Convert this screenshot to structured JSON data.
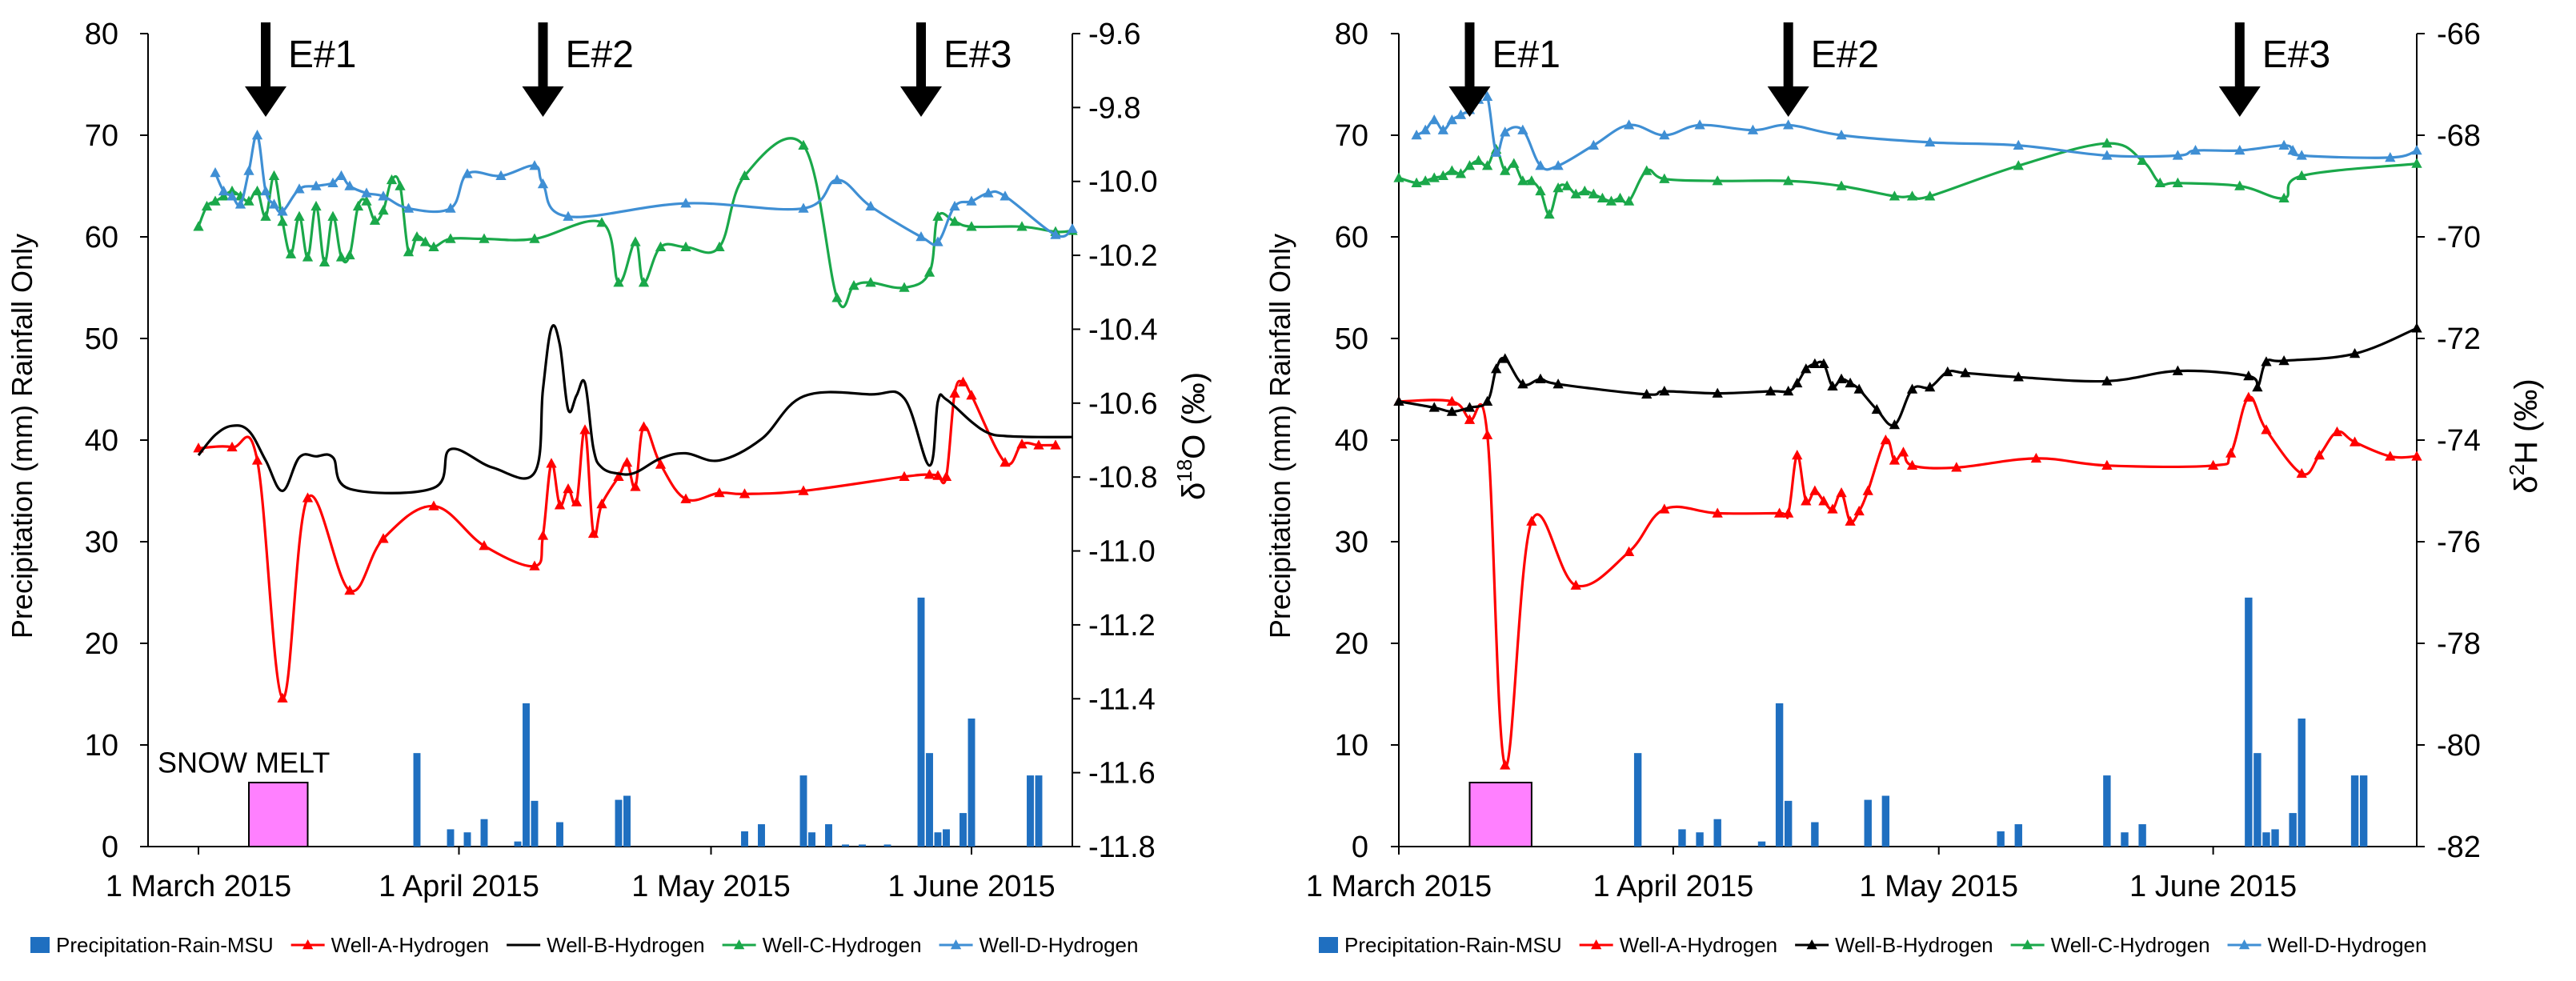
{
  "legend": [
    {
      "name": "Precipitation-Rain-MSU",
      "color": "#1f6fc0",
      "kind": "bar"
    },
    {
      "name": "Well-A-Hydrogen",
      "color": "#ff0000",
      "kind": "line"
    },
    {
      "name": "Well-B-Hydrogen",
      "color": "#000000",
      "kind": "line"
    },
    {
      "name": "Well-C-Hydrogen",
      "color": "#1aa84a",
      "kind": "line"
    },
    {
      "name": "Well-D-Hydrogen",
      "color": "#3f8fd4",
      "kind": "line"
    }
  ],
  "chart_data": [
    {
      "type": "bar+line",
      "panel": "left",
      "xlabel": "",
      "xticks": [
        {
          "day": 0,
          "label": "1 March 2015"
        },
        {
          "day": 31,
          "label": "1 April 2015"
        },
        {
          "day": 61,
          "label": "1 May 2015"
        },
        {
          "day": 92,
          "label": "1 June 2015"
        }
      ],
      "xlim": [
        -6,
        104
      ],
      "ylabel": "Precipitation (mm) Rainfall Only",
      "ylim": [
        0,
        80
      ],
      "yticks": [
        0,
        10,
        20,
        30,
        40,
        50,
        60,
        70,
        80
      ],
      "y2label_prefix": "δ",
      "y2label_sup": "18",
      "y2label_suffix": "O (‰)",
      "y2lim": [
        -11.8,
        -9.6
      ],
      "y2ticks": [
        "-9.6",
        "-9.8",
        "-10.0",
        "-10.2",
        "-10.4",
        "-10.6",
        "-10.8",
        "-11.0",
        "-11.2",
        "-11.4",
        "-11.6",
        "-11.8"
      ],
      "events": [
        {
          "label": "E#1",
          "day": 8
        },
        {
          "label": "E#2",
          "day": 41
        },
        {
          "label": "E#3",
          "day": 86
        }
      ],
      "snowmelt": {
        "label": "SNOW MELT",
        "start": 6,
        "end": 13,
        "value": 6.3
      },
      "precipitation": {
        "name": "Precipitation-Rain-MSU",
        "days": [
          26,
          30,
          32,
          34,
          38,
          39,
          40,
          43,
          50,
          51,
          65,
          67,
          72,
          73,
          75,
          77,
          79,
          82,
          86,
          87,
          88,
          89,
          91,
          92,
          99,
          100
        ],
        "values": [
          9.2,
          1.7,
          1.4,
          2.7,
          0.5,
          14.1,
          4.5,
          2.4,
          4.6,
          5.0,
          1.5,
          2.2,
          7.0,
          1.4,
          2.2,
          0.2,
          0.2,
          0.2,
          24.5,
          9.2,
          1.4,
          1.7,
          3.3,
          12.6,
          7.0,
          7.0
        ]
      },
      "series": [
        {
          "name": "Well-A-Hydrogen",
          "color": "#ff0000",
          "days": [
            0,
            4,
            7,
            10,
            13,
            18,
            22,
            28,
            34,
            40,
            41,
            42,
            43,
            44,
            45,
            46,
            47,
            48,
            50,
            51,
            52,
            53,
            55,
            58,
            62,
            65,
            72,
            84,
            87,
            88,
            89,
            90,
            91,
            92,
            96,
            98,
            100,
            102
          ],
          "values": [
            39.2,
            39.3,
            38.0,
            14.6,
            34.3,
            25.2,
            30.3,
            33.5,
            29.6,
            27.6,
            30.6,
            37.7,
            33.6,
            35.2,
            33.9,
            41.0,
            30.8,
            33.7,
            36.4,
            37.8,
            35.4,
            41.3,
            37.6,
            34.2,
            34.8,
            34.7,
            35.0,
            36.4,
            36.6,
            36.5,
            36.4,
            44.6,
            45.7,
            44.4,
            37.8,
            39.6,
            39.5,
            39.5
          ],
          "marker": "triangle"
        },
        {
          "name": "Well-B-Hydrogen",
          "color": "#000000",
          "days": [
            0,
            2,
            4,
            6,
            8,
            10,
            12,
            14,
            16,
            18,
            28,
            30,
            35,
            40,
            41,
            42,
            43,
            44,
            45,
            46,
            47,
            48,
            50,
            52,
            55,
            58,
            62,
            67,
            72,
            80,
            84,
            87,
            88,
            89,
            92,
            94,
            96,
            100,
            104
          ],
          "values": [
            38.5,
            40.5,
            41.4,
            40.9,
            38.0,
            35.0,
            38.3,
            38.4,
            38.3,
            35.2,
            35.3,
            39.1,
            37.3,
            36.8,
            45.0,
            51.0,
            49.4,
            43.0,
            44.4,
            45.6,
            39.2,
            37.3,
            36.7,
            36.8,
            38.2,
            38.7,
            38.0,
            40.1,
            44.3,
            44.5,
            44.1,
            37.5,
            43.8,
            44.0,
            41.8,
            40.7,
            40.4,
            40.3,
            40.3
          ],
          "marker": "none"
        },
        {
          "name": "Well-C-Hydrogen",
          "color": "#1aa84a",
          "days": [
            0,
            1,
            2,
            3,
            4,
            5,
            6,
            7,
            8,
            9,
            10,
            11,
            12,
            13,
            14,
            15,
            16,
            17,
            18,
            19,
            20,
            21,
            22,
            23,
            24,
            25,
            26,
            27,
            28,
            30,
            34,
            40,
            48,
            50,
            52,
            53,
            55,
            58,
            62,
            65,
            72,
            76,
            78,
            80,
            84,
            87,
            88,
            90,
            92,
            98,
            102,
            104
          ],
          "values": [
            61.0,
            63.0,
            63.5,
            64.0,
            64.5,
            64.0,
            63.5,
            64.5,
            62.0,
            66.0,
            61.5,
            58.3,
            62.0,
            58.0,
            63.0,
            57.5,
            62.0,
            58.0,
            58.2,
            63.0,
            63.5,
            61.6,
            62.6,
            65.6,
            65.0,
            58.5,
            60.0,
            59.5,
            59.0,
            59.8,
            59.8,
            59.8,
            61.4,
            55.5,
            59.5,
            55.5,
            59.0,
            59.0,
            59.0,
            66.0,
            69.0,
            54.0,
            55.2,
            55.5,
            55.0,
            56.5,
            62.0,
            61.5,
            61.0,
            61.0,
            60.5,
            60.6
          ],
          "marker": "triangle"
        },
        {
          "name": "Well-D-Hydrogen",
          "color": "#3f8fd4",
          "days": [
            2,
            3,
            4,
            5,
            6,
            7,
            8,
            9,
            10,
            12,
            14,
            16,
            17,
            18,
            20,
            22,
            25,
            30,
            32,
            36,
            40,
            41,
            44,
            58,
            72,
            76,
            80,
            86,
            88,
            90,
            92,
            94,
            96,
            102,
            104
          ],
          "values": [
            66.3,
            64.5,
            64.0,
            63.2,
            66.5,
            70.0,
            64.5,
            63.2,
            62.5,
            64.7,
            65.0,
            65.3,
            66.0,
            65.0,
            64.3,
            64.0,
            62.8,
            62.8,
            66.2,
            66.0,
            67.0,
            65.2,
            62.0,
            63.3,
            62.8,
            65.6,
            63.0,
            60.0,
            59.5,
            63.0,
            63.5,
            64.3,
            64.0,
            60.2,
            60.8
          ],
          "marker": "triangle"
        }
      ]
    },
    {
      "type": "bar+line",
      "panel": "right",
      "xlabel": "",
      "xticks": [
        {
          "day": 0,
          "label": "1 March 2015"
        },
        {
          "day": 31,
          "label": "1 April 2015"
        },
        {
          "day": 61,
          "label": "1 May 2015"
        },
        {
          "day": 92,
          "label": "1 June 2015"
        }
      ],
      "xlim": [
        0,
        115
      ],
      "ylabel": "Precipitation (mm) Rainfall Only",
      "ylim": [
        0,
        80
      ],
      "yticks": [
        0,
        10,
        20,
        30,
        40,
        50,
        60,
        70,
        80
      ],
      "y2label_prefix": "δ",
      "y2label_sup": "2",
      "y2label_suffix": "H (‰)",
      "y2lim": [
        -82,
        -66
      ],
      "y2ticks": [
        "-66",
        "-68",
        "-70",
        "-72",
        "-74",
        "-76",
        "-78",
        "-80",
        "-82"
      ],
      "events": [
        {
          "label": "E#1",
          "day": 8
        },
        {
          "label": "E#2",
          "day": 44
        },
        {
          "label": "E#3",
          "day": 95
        }
      ],
      "snowmelt": {
        "label": "",
        "start": 8,
        "end": 15,
        "value": 6.3
      },
      "precipitation": {
        "name": "Precipitation-Rain-MSU",
        "days": [
          27,
          32,
          34,
          36,
          41,
          43,
          44,
          47,
          53,
          55,
          68,
          70,
          80,
          82,
          84,
          96,
          97,
          98,
          99,
          101,
          102,
          108,
          109
        ],
        "values": [
          9.2,
          1.7,
          1.4,
          2.7,
          0.5,
          14.1,
          4.5,
          2.4,
          4.6,
          5.0,
          1.5,
          2.2,
          7.0,
          1.4,
          2.2,
          24.5,
          9.2,
          1.4,
          1.7,
          3.3,
          12.6,
          7.0,
          7.0
        ]
      },
      "series": [
        {
          "name": "Well-A-Hydrogen",
          "color": "#ff0000",
          "days": [
            0,
            6,
            8,
            10,
            12,
            15,
            20,
            26,
            30,
            36,
            43,
            44,
            45,
            46,
            47,
            48,
            49,
            50,
            51,
            52,
            53,
            55,
            56,
            57,
            58,
            63,
            72,
            80,
            92,
            94,
            96,
            98,
            102,
            104,
            106,
            108,
            112,
            115
          ],
          "values": [
            43.8,
            43.8,
            42.0,
            40.5,
            8.0,
            32.0,
            25.7,
            29.0,
            33.2,
            32.8,
            32.8,
            32.8,
            38.5,
            34.0,
            35.0,
            34.0,
            33.2,
            34.8,
            32.0,
            33.0,
            35.0,
            40.0,
            38.0,
            38.8,
            37.5,
            37.3,
            38.2,
            37.5,
            37.5,
            38.7,
            44.2,
            41.0,
            36.7,
            38.5,
            40.8,
            39.8,
            38.4,
            38.4
          ],
          "marker": "triangle"
        },
        {
          "name": "Well-B-Hydrogen",
          "color": "#000000",
          "days": [
            0,
            4,
            6,
            8,
            10,
            11,
            12,
            14,
            16,
            18,
            28,
            30,
            36,
            42,
            44,
            45,
            46,
            47,
            48,
            49,
            50,
            51,
            52,
            54,
            56,
            58,
            60,
            62,
            64,
            70,
            80,
            88,
            96,
            97,
            98,
            100,
            108,
            115
          ],
          "values": [
            43.8,
            43.2,
            42.8,
            43.2,
            43.8,
            47.0,
            48.0,
            45.5,
            46.0,
            45.5,
            44.5,
            44.8,
            44.6,
            44.8,
            44.8,
            45.6,
            47.0,
            47.5,
            47.5,
            45.3,
            46.0,
            45.6,
            45.0,
            43.0,
            41.5,
            45.0,
            45.2,
            46.7,
            46.6,
            46.2,
            45.8,
            46.8,
            46.3,
            45.2,
            47.7,
            47.8,
            48.5,
            51.0
          ],
          "marker": "triangle"
        },
        {
          "name": "Well-C-Hydrogen",
          "color": "#1aa84a",
          "days": [
            0,
            2,
            3,
            4,
            5,
            6,
            7,
            8,
            9,
            10,
            11,
            12,
            13,
            14,
            15,
            16,
            17,
            18,
            19,
            20,
            21,
            22,
            23,
            24,
            25,
            26,
            28,
            30,
            36,
            44,
            50,
            56,
            58,
            60,
            70,
            80,
            84,
            86,
            88,
            95,
            100,
            102,
            115
          ],
          "values": [
            65.8,
            65.3,
            65.5,
            65.8,
            66.0,
            66.5,
            66.2,
            67.0,
            67.5,
            67.0,
            68.6,
            66.5,
            67.2,
            65.5,
            65.5,
            64.5,
            62.2,
            64.8,
            65.0,
            64.2,
            64.5,
            64.2,
            63.8,
            63.5,
            63.8,
            63.5,
            66.5,
            65.7,
            65.5,
            65.5,
            65.0,
            64.0,
            64.0,
            64.0,
            67.0,
            69.2,
            67.5,
            65.3,
            65.3,
            65.0,
            63.8,
            66.0,
            67.2
          ],
          "marker": "triangle"
        },
        {
          "name": "Well-D-Hydrogen",
          "color": "#3f8fd4",
          "days": [
            2,
            3,
            4,
            5,
            6,
            7,
            8,
            9,
            10,
            11,
            12,
            14,
            16,
            18,
            22,
            26,
            30,
            34,
            40,
            44,
            50,
            60,
            70,
            80,
            88,
            90,
            95,
            100,
            101,
            102,
            112,
            115
          ],
          "values": [
            70.0,
            70.5,
            71.5,
            70.5,
            71.5,
            72.0,
            72.5,
            73.5,
            73.8,
            68.3,
            70.3,
            70.5,
            67.0,
            67.0,
            69.0,
            71.0,
            70.0,
            71.0,
            70.5,
            71.0,
            70.0,
            69.3,
            69.0,
            68.0,
            68.0,
            68.5,
            68.5,
            69.0,
            68.5,
            68.0,
            67.8,
            68.5
          ],
          "marker": "triangle"
        }
      ]
    }
  ]
}
